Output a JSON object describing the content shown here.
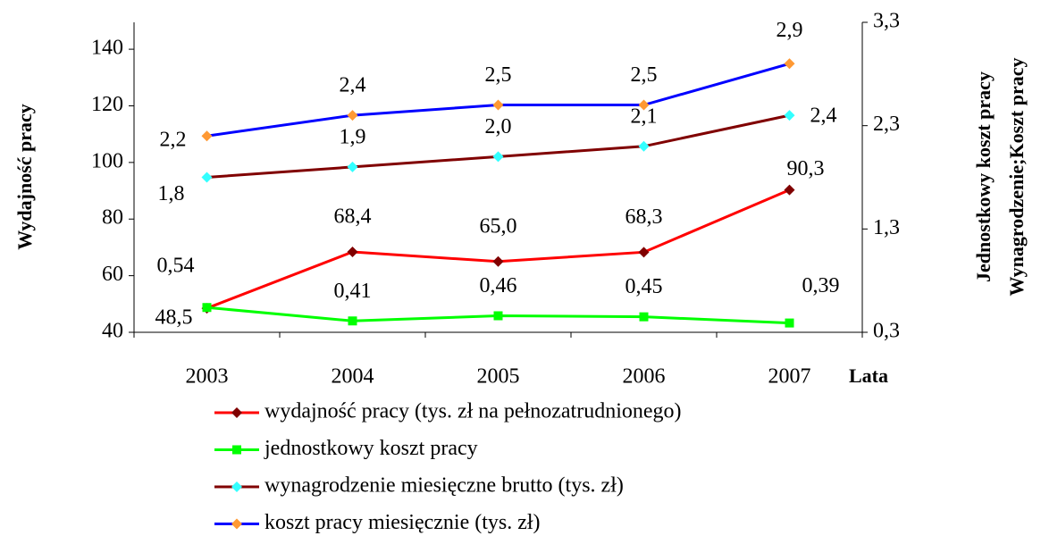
{
  "chart_data": {
    "type": "line",
    "categories": [
      "2003",
      "2004",
      "2005",
      "2006",
      "2007"
    ],
    "x_label": "Lata",
    "y_label": "Wydajność pracy",
    "y2_label": [
      "Jednostkowy koszt pracy",
      "Wynagrodzenie;Koszt pracy"
    ],
    "ylim": [
      40,
      149.5
    ],
    "yticks": [
      40,
      60,
      80,
      100,
      120,
      140
    ],
    "y2lim": [
      0.3,
      3.3
    ],
    "y2ticks": [
      {
        "value": 0.3,
        "label": "0,3"
      },
      {
        "value": 1.3,
        "label": "1,3"
      },
      {
        "value": 2.3,
        "label": "2,3"
      },
      {
        "value": 3.3,
        "label": "3,3"
      }
    ],
    "series": [
      {
        "name": "wydajność pracy (tys. zł na pełnozatrudnionego)",
        "color": "#ff0000",
        "marker_color": "#800000",
        "marker": "diamond",
        "values": [
          48.5,
          68.4,
          65.0,
          68.3,
          90.3
        ],
        "value_labels": [
          "48,5",
          "68,4",
          "65,0",
          "68,3",
          "90,3"
        ]
      },
      {
        "name": "jednostkowy koszt pracy",
        "color": "#00ff00",
        "marker_color": "#00ff00",
        "marker": "square",
        "axis": "y2",
        "values": [
          0.54,
          0.41,
          0.46,
          0.45,
          0.39
        ],
        "value_labels": [
          "0,54",
          "0,41",
          "0,46",
          "0,45",
          "0,39"
        ]
      },
      {
        "name": "wynagrodzenie miesięczne brutto (tys. zł)",
        "color": "#800000",
        "marker_color": "#33ffff",
        "marker": "diamond",
        "axis": "y2",
        "values": [
          1.8,
          1.9,
          2.0,
          2.1,
          2.4
        ],
        "value_labels": [
          "1,8",
          "1,9",
          "2,0",
          "2,1",
          "2,4"
        ]
      },
      {
        "name": "koszt pracy miesięcznie (tys. zł)",
        "color": "#0000ff",
        "marker_color": "#ff9933",
        "marker": "diamond",
        "axis": "y2",
        "values": [
          2.2,
          2.4,
          2.5,
          2.5,
          2.9
        ],
        "value_labels": [
          "2,2",
          "2,4",
          "2,5",
          "2,5",
          "2,9"
        ]
      }
    ]
  }
}
